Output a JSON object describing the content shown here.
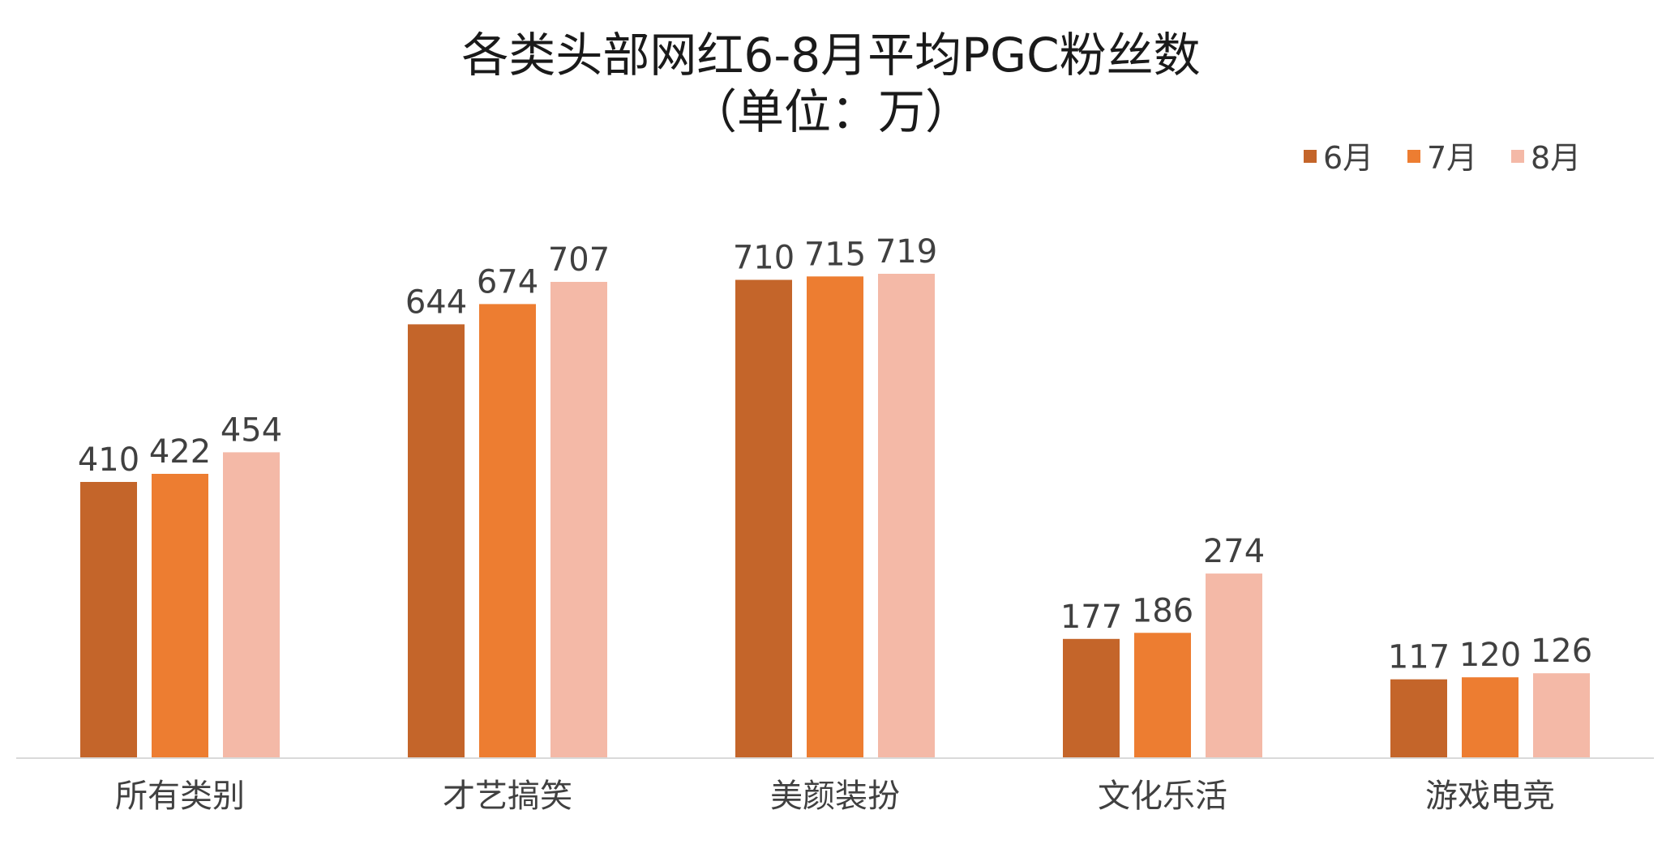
{
  "chart_data": {
    "type": "bar",
    "title": "各类头部网红6-8月平均PGC粉丝数",
    "subtitle": "（单位：万）",
    "categories": [
      "所有类别",
      "才艺搞笑",
      "美颜装扮",
      "文化乐活",
      "游戏电竞"
    ],
    "series": [
      {
        "name": "6月",
        "color": "#C4652A",
        "values": [
          410,
          644,
          710,
          177,
          117
        ]
      },
      {
        "name": "7月",
        "color": "#ED7D31",
        "values": [
          422,
          674,
          715,
          186,
          120
        ]
      },
      {
        "name": "8月",
        "color": "#F4B9A7",
        "values": [
          454,
          707,
          719,
          274,
          126
        ]
      }
    ],
    "ylim": [
      0,
      719
    ],
    "grid": false,
    "legend_position": "top-right",
    "data_labels": true,
    "axis_color": "#d9d9d9"
  }
}
